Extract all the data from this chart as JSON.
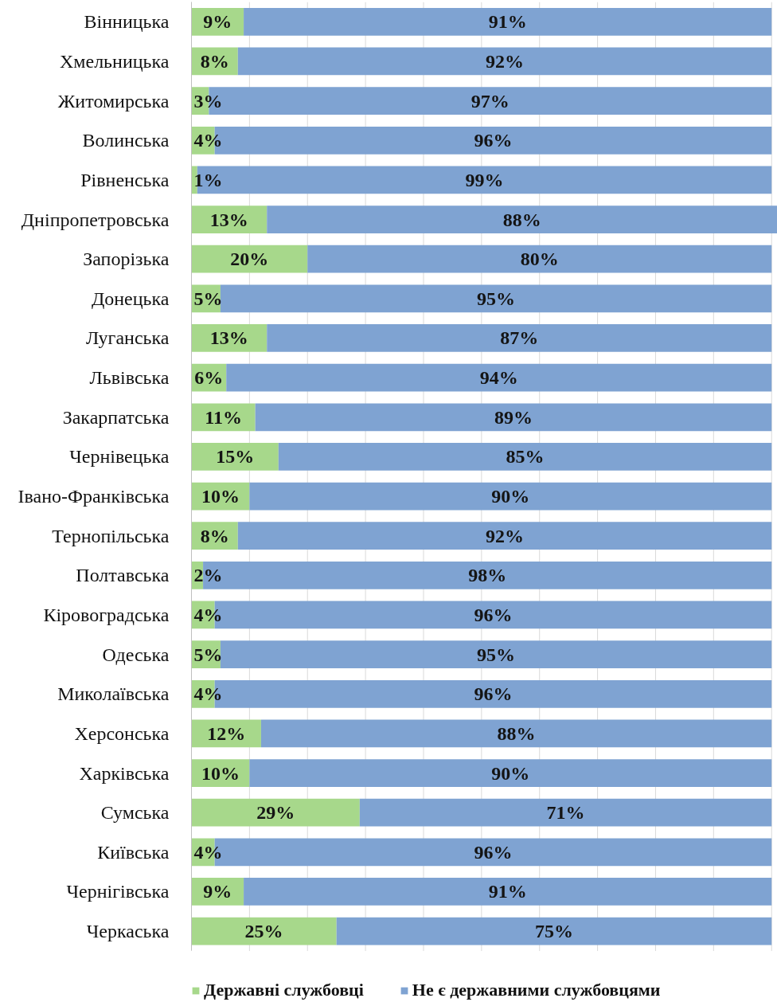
{
  "chart_data": {
    "type": "bar",
    "orientation": "horizontal",
    "stacked": true,
    "categories": [
      "Вінницька",
      "Хмельницька",
      "Житомирська",
      "Волинська",
      "Рівненська",
      "Дніпропетровська",
      "Запорізька",
      "Донецька",
      "Луганська",
      "Львівська",
      "Закарпатська",
      "Чернівецька",
      "Івано-Франківська",
      "Тернопільська",
      "Полтавська",
      "Кіровоградська",
      "Одеська",
      "Миколаївська",
      "Херсонська",
      "Харківська",
      "Сумська",
      "Київська",
      "Чернігівська",
      "Черкаська"
    ],
    "series": [
      {
        "name": "Державні службовці",
        "color": "#a7d88b",
        "values": [
          9,
          8,
          3,
          4,
          1,
          13,
          20,
          5,
          13,
          6,
          11,
          15,
          10,
          8,
          2,
          4,
          5,
          4,
          12,
          10,
          29,
          4,
          9,
          25
        ],
        "value_labels": [
          "9%",
          "8%",
          "3%",
          "4%",
          "1%",
          "13%",
          "20%",
          "5%",
          "13%",
          "6%",
          "11%",
          "15%",
          "10%",
          "8%",
          "2%",
          "4%",
          "5%",
          "4%",
          "12%",
          "10%",
          "29%",
          "4%",
          "9%",
          "25%"
        ]
      },
      {
        "name": "Не є державними службовцями",
        "color": "#7fa3d2",
        "values": [
          91,
          92,
          97,
          96,
          99,
          88,
          80,
          95,
          87,
          94,
          89,
          85,
          90,
          92,
          98,
          96,
          95,
          96,
          88,
          90,
          71,
          96,
          91,
          75
        ],
        "value_labels": [
          "91%",
          "92%",
          "97%",
          "96%",
          "99%",
          "88%",
          "80%",
          "95%",
          "87%",
          "94%",
          "89%",
          "85%",
          "90%",
          "92%",
          "98%",
          "96%",
          "95%",
          "96%",
          "88%",
          "90%",
          "71%",
          "96%",
          "91%",
          "75%"
        ]
      }
    ],
    "xlim": [
      0,
      101
    ],
    "xticks": [
      {
        "value": 0,
        "label": null
      },
      {
        "value": 10,
        "label": null
      },
      {
        "value": 20,
        "label": null
      },
      {
        "value": 30,
        "label": null
      },
      {
        "value": 40,
        "label": null
      },
      {
        "value": 50,
        "label": null
      },
      {
        "value": 60,
        "label": null
      },
      {
        "value": 70,
        "label": null
      },
      {
        "value": 80,
        "label": null
      },
      {
        "value": 90,
        "label": null
      },
      {
        "value": 100,
        "label": null
      }
    ],
    "grid": "x",
    "legend": "bottom",
    "tick_labels": "y"
  }
}
